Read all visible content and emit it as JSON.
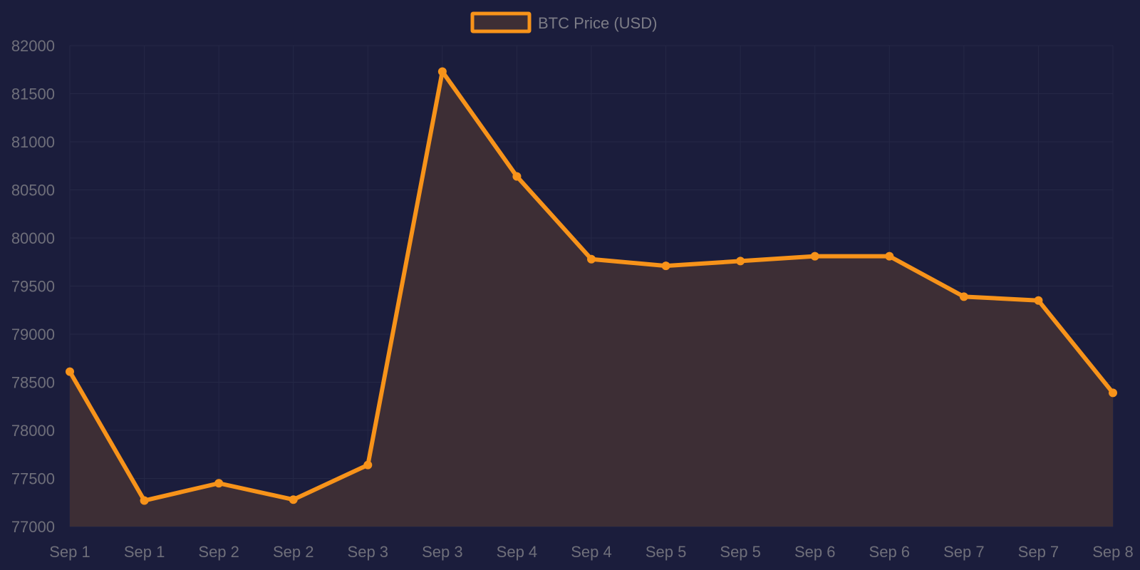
{
  "chart_data": {
    "type": "area",
    "title": "",
    "xlabel": "",
    "ylabel": "",
    "categories": [
      "Sep 1",
      "Sep 1",
      "Sep 2",
      "Sep 2",
      "Sep 3",
      "Sep 3",
      "Sep 4",
      "Sep 4",
      "Sep 5",
      "Sep 5",
      "Sep 6",
      "Sep 6",
      "Sep 7",
      "Sep 7",
      "Sep 8"
    ],
    "series": [
      {
        "name": "BTC Price (USD)",
        "values": [
          78610,
          77270,
          77450,
          77280,
          77640,
          81730,
          80640,
          79780,
          79710,
          79760,
          79810,
          79810,
          79390,
          79350,
          78390
        ]
      }
    ],
    "ylim": [
      77000,
      82000
    ],
    "yticks": [
      77000,
      77500,
      78000,
      78500,
      79000,
      79500,
      80000,
      80500,
      81000,
      81500,
      82000
    ],
    "grid": true,
    "legend": "top-center",
    "colors": {
      "background": "#1b1d3c",
      "line": "#f7931a",
      "fill": "#3d2e35",
      "grid": "#252846",
      "tick_text": "#6f6f7a",
      "legend_text": "#7c7c86"
    }
  }
}
